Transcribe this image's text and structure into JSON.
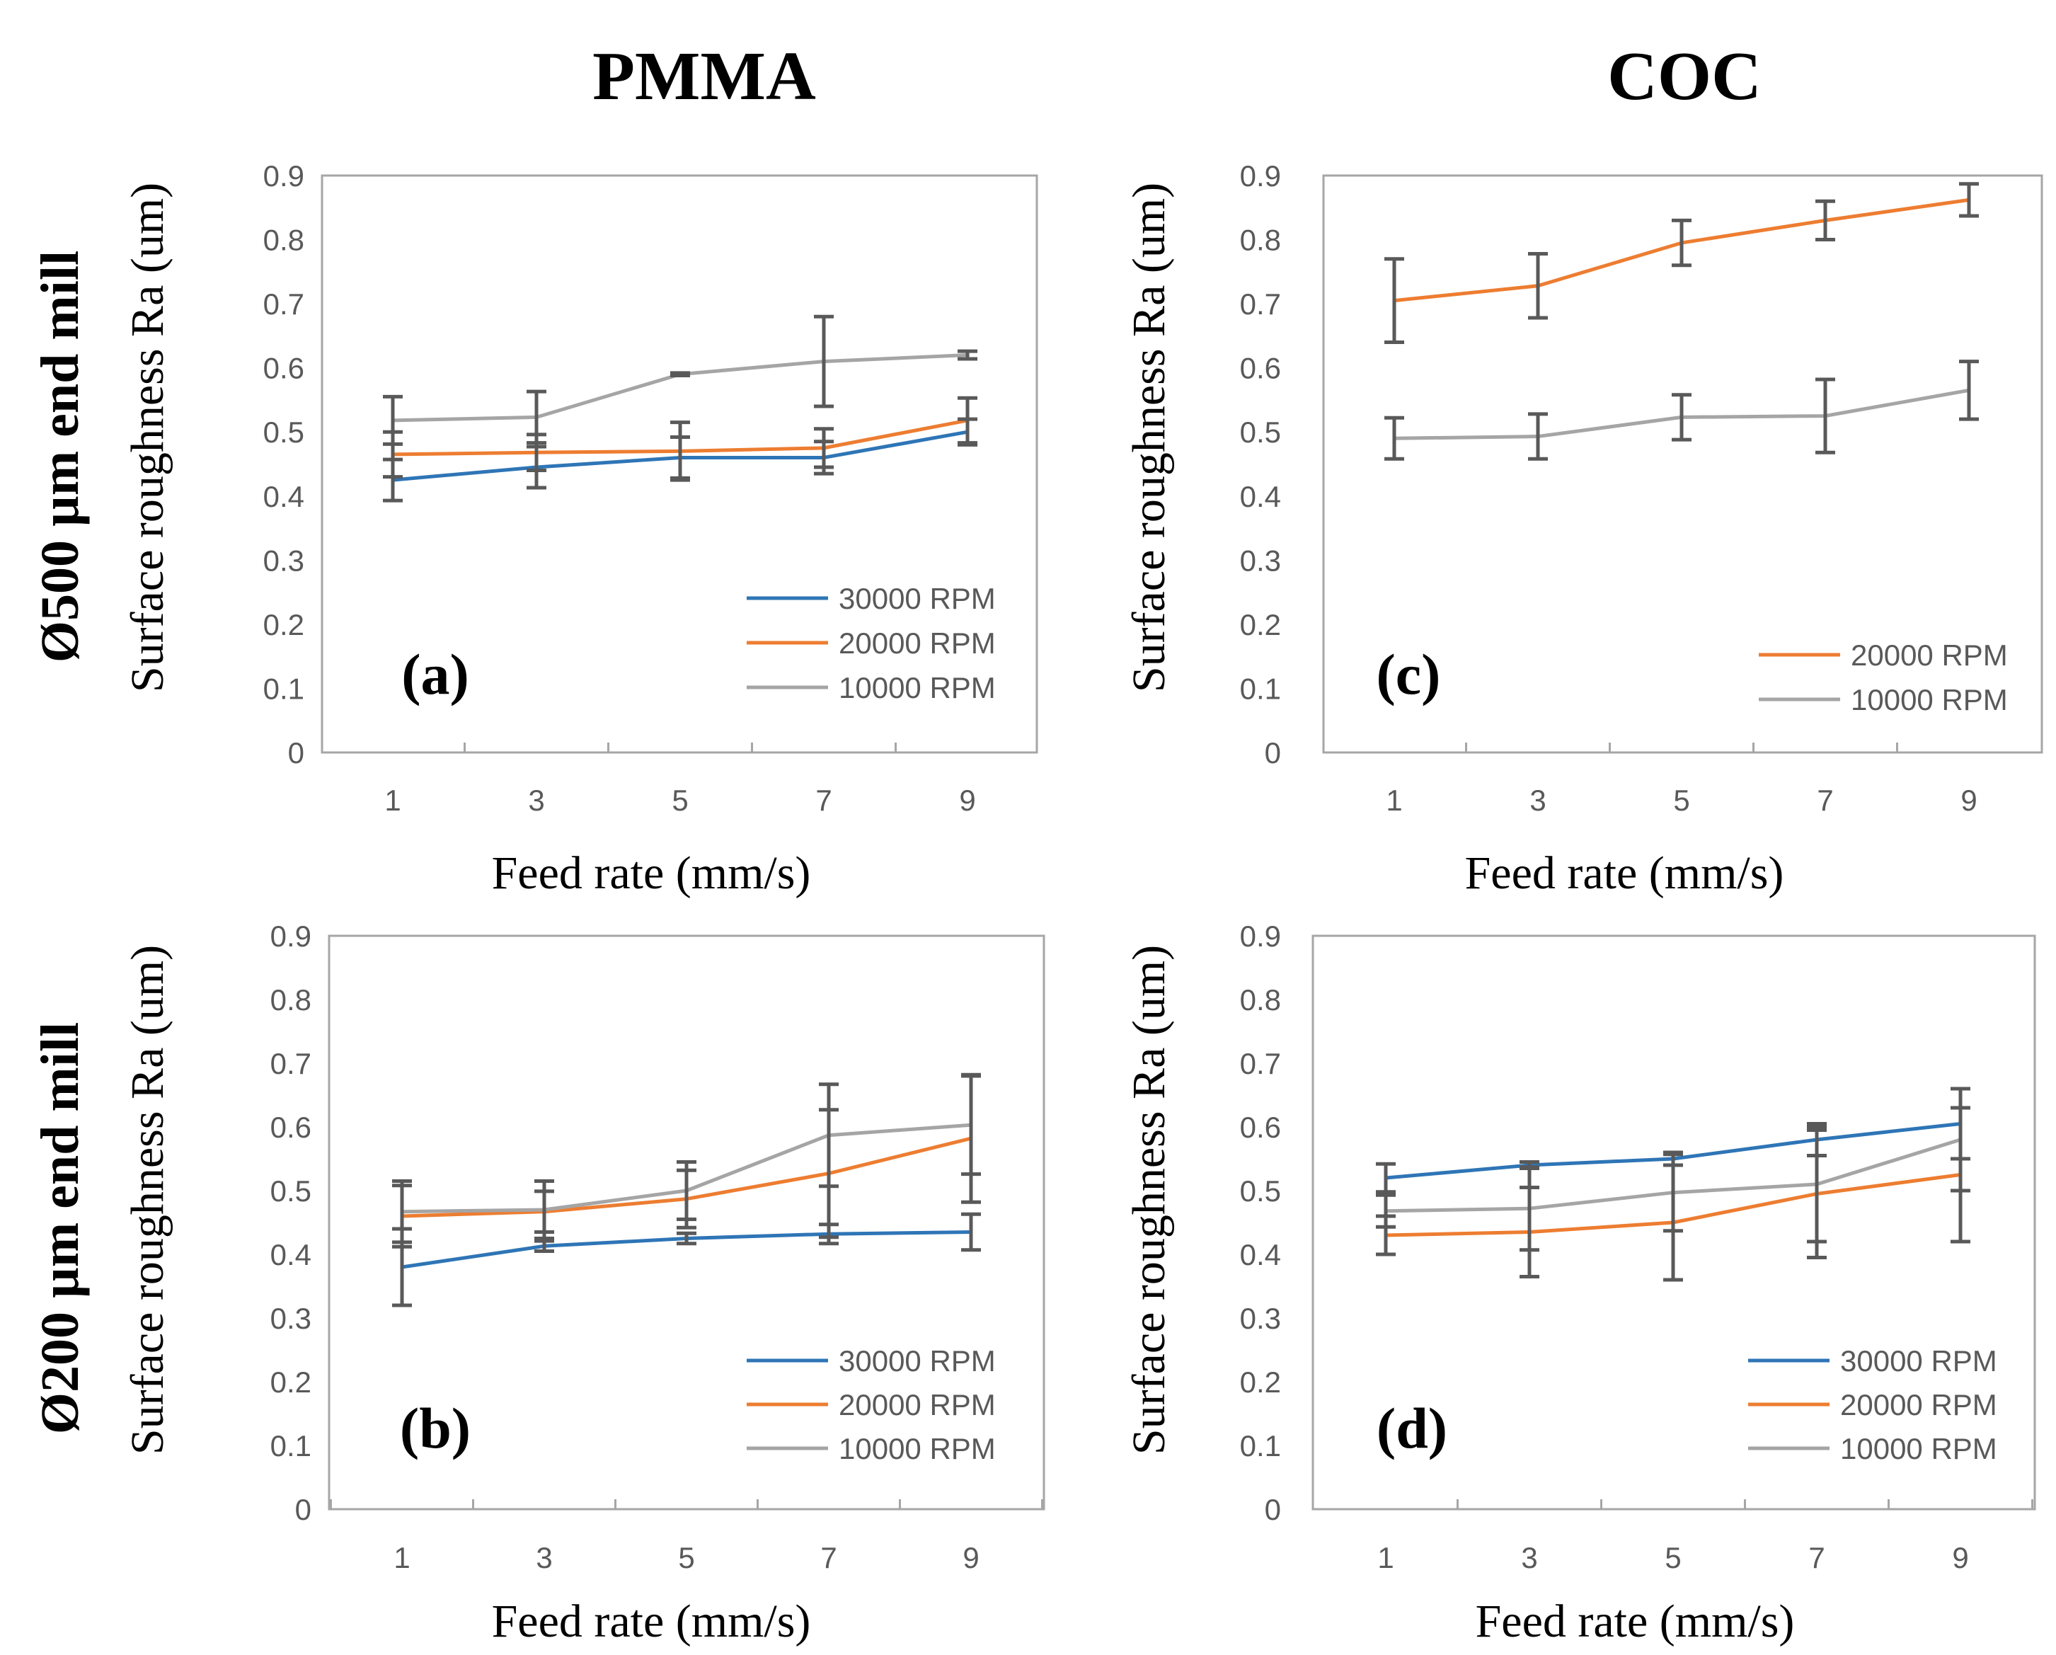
{
  "column_titles": [
    "PMMA",
    "COC"
  ],
  "row_titles": [
    "Ø500 µm end mill",
    "Ø200 µm end mill"
  ],
  "colors": {
    "30000 RPM": "#2e75b6",
    "20000 RPM": "#ed7d31",
    "10000 RPM": "#a5a5a5",
    "error_bar": "#595959",
    "axis": "#a6a6a6"
  },
  "chart_data": [
    {
      "type": "line",
      "panel": "(a)",
      "title": "",
      "xlabel": "Feed rate (mm/s)",
      "ylabel": "Surface roughness Ra (um)",
      "categories": [
        "1",
        "3",
        "5",
        "7",
        "9"
      ],
      "ylim": [
        0,
        0.9
      ],
      "yticks": [
        "0",
        "0.1",
        "0.2",
        "0.3",
        "0.4",
        "0.5",
        "0.6",
        "0.7",
        "0.8",
        "0.9"
      ],
      "legend_position": "bottom-right",
      "series": [
        {
          "name": "30000 RPM",
          "values": [
            0.425,
            0.445,
            0.46,
            0.46,
            0.5
          ],
          "errors": [
            0.032,
            0.032,
            0.032,
            0.025,
            0.02
          ]
        },
        {
          "name": "20000 RPM",
          "values": [
            0.465,
            0.468,
            0.47,
            0.475,
            0.518
          ],
          "errors": [
            0.035,
            0.028,
            0.045,
            0.03,
            0.035
          ]
        },
        {
          "name": "10000 RPM",
          "values": [
            0.518,
            0.523,
            0.59,
            0.61,
            0.62
          ],
          "errors": [
            0.037,
            0.04,
            0.002,
            0.07,
            0.006
          ]
        }
      ]
    },
    {
      "type": "line",
      "panel": "(c)",
      "title": "",
      "xlabel": "Feed rate (mm/s)",
      "ylabel": "Surface roughness Ra (um)",
      "categories": [
        "1",
        "3",
        "5",
        "7",
        "9"
      ],
      "ylim": [
        0,
        0.9
      ],
      "yticks": [
        "0",
        "0.1",
        "0.2",
        "0.3",
        "0.4",
        "0.5",
        "0.6",
        "0.7",
        "0.8",
        "0.9"
      ],
      "legend_position": "bottom-right",
      "series": [
        {
          "name": "20000 RPM",
          "values": [
            0.705,
            0.728,
            0.795,
            0.83,
            0.862
          ],
          "errors": [
            0.065,
            0.05,
            0.035,
            0.03,
            0.025
          ]
        },
        {
          "name": "10000 RPM",
          "values": [
            0.49,
            0.493,
            0.523,
            0.525,
            0.565
          ],
          "errors": [
            0.032,
            0.035,
            0.035,
            0.057,
            0.045
          ]
        }
      ]
    },
    {
      "type": "line",
      "panel": "(b)",
      "title": "",
      "xlabel": "Feed rate (mm/s)",
      "ylabel": "Surface roughness Ra (um)",
      "categories": [
        "1",
        "3",
        "5",
        "7",
        "9"
      ],
      "ylim": [
        0,
        0.9
      ],
      "yticks": [
        "0",
        "0.1",
        "0.2",
        "0.3",
        "0.4",
        "0.5",
        "0.6",
        "0.7",
        "0.8",
        "0.9"
      ],
      "legend_position": "bottom-right",
      "series": [
        {
          "name": "30000 RPM",
          "values": [
            0.38,
            0.413,
            0.425,
            0.432,
            0.435
          ],
          "errors": [
            0.06,
            0.008,
            0.008,
            0.015,
            0.028
          ]
        },
        {
          "name": "20000 RPM",
          "values": [
            0.46,
            0.467,
            0.487,
            0.527,
            0.582
          ],
          "errors": [
            0.048,
            0.032,
            0.045,
            0.1,
            0.1
          ]
        },
        {
          "name": "10000 RPM",
          "values": [
            0.467,
            0.47,
            0.5,
            0.587,
            0.603
          ],
          "errors": [
            0.048,
            0.045,
            0.045,
            0.08,
            0.077
          ]
        }
      ]
    },
    {
      "type": "line",
      "panel": "(d)",
      "title": "",
      "xlabel": "Feed rate (mm/s)",
      "ylabel": "Surface roughness Ra (um)",
      "categories": [
        "1",
        "3",
        "5",
        "7",
        "9"
      ],
      "ylim": [
        0,
        0.9
      ],
      "yticks": [
        "0",
        "0.1",
        "0.2",
        "0.3",
        "0.4",
        "0.5",
        "0.6",
        "0.7",
        "0.8",
        "0.9"
      ],
      "legend_position": "bottom-right",
      "series": [
        {
          "name": "30000 RPM",
          "values": [
            0.52,
            0.54,
            0.55,
            0.58,
            0.605
          ],
          "errors": [
            0.022,
            0.005,
            0.01,
            0.025,
            0.055
          ]
        },
        {
          "name": "20000 RPM",
          "values": [
            0.43,
            0.435,
            0.45,
            0.495,
            0.525
          ],
          "errors": [
            0.03,
            0.07,
            0.09,
            0.1,
            0.105
          ]
        },
        {
          "name": "10000 RPM",
          "values": [
            0.468,
            0.472,
            0.497,
            0.51,
            0.58
          ],
          "errors": [
            0.025,
            0.065,
            0.06,
            0.09,
            0.08
          ]
        }
      ]
    }
  ]
}
